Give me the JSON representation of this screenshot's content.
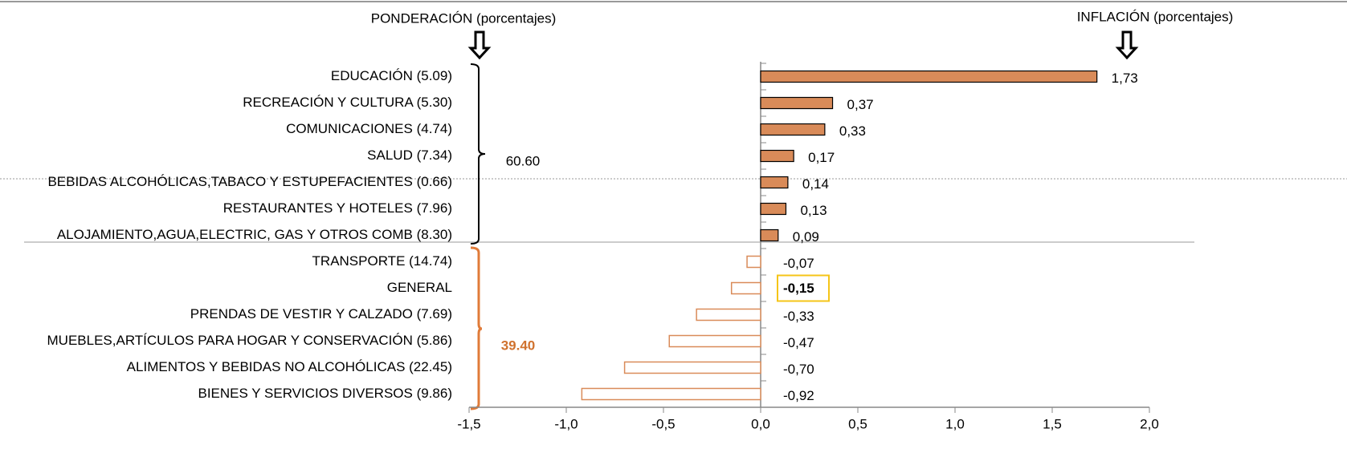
{
  "chart_data": {
    "type": "hbar",
    "annotations": [
      "PONDERACIÓN (porcentajes)",
      "INFLACIÓN (porcentajes)",
      "60.60",
      "39.40"
    ],
    "categories": [
      "EDUCACIÓN (5.09)",
      "RECREACIÓN Y CULTURA (5.30)",
      "COMUNICACIONES (4.74)",
      "SALUD (7.34)",
      "BEBIDAS ALCOHÓLICAS,TABACO Y ESTUPEFACIENTES (0.66)",
      "RESTAURANTES Y HOTELES (7.96)",
      "ALOJAMIENTO,AGUA,ELECTRIC, GAS Y OTROS COMB (8.30)",
      "TRANSPORTE (14.74)",
      "GENERAL ",
      "PRENDAS DE VESTIR Y CALZADO (7.69)",
      "MUEBLES,ARTÍCULOS PARA HOGAR Y CONSERVACIÓN (5.86)",
      "ALIMENTOS Y BEBIDAS NO ALCOHÓLICAS (22.45)",
      "BIENES Y SERVICIOS DIVERSOS (9.86)"
    ],
    "values": [
      1.73,
      0.37,
      0.33,
      0.17,
      0.14,
      0.13,
      0.09,
      -0.07,
      -0.15,
      -0.33,
      -0.47,
      -0.7,
      -0.92
    ],
    "value_labels": [
      "1,73",
      "0,37",
      "0,33",
      "0,17",
      "0,14",
      "0,13",
      "0,09",
      "-0,07",
      "-0,15",
      "-0,33",
      "-0,47",
      "-0,70",
      "-0,92"
    ],
    "color": "#d98b59",
    "invert_if_negative": true,
    "highlight_index": 8,
    "xlim": [
      -1.5,
      2.0
    ],
    "xticks": [
      {
        "value": -1.5,
        "label": "-1,5"
      },
      {
        "value": -1.0,
        "label": "-1,0"
      },
      {
        "value": -0.5,
        "label": "-0,5"
      },
      {
        "value": 0,
        "label": "0,0"
      },
      {
        "value": 0.5,
        "label": "0,5"
      },
      {
        "value": 1.0,
        "label": "1,0"
      },
      {
        "value": 1.5,
        "label": "1,5"
      },
      {
        "value": 2.0,
        "label": "2,0"
      }
    ]
  }
}
